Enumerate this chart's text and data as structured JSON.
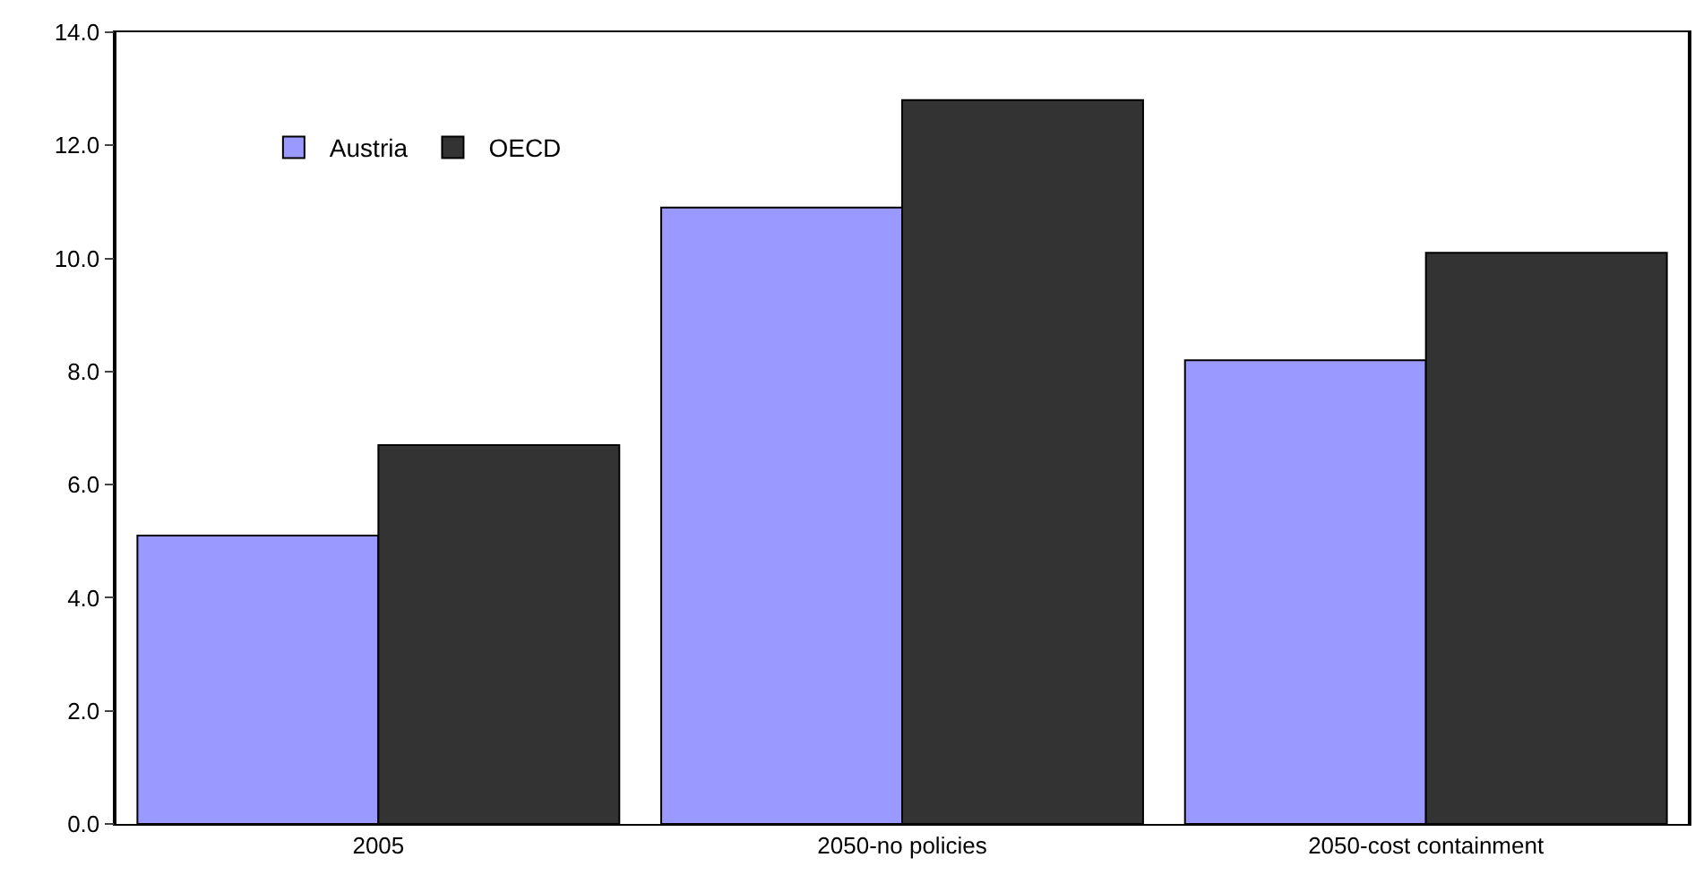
{
  "chart_data": {
    "type": "bar",
    "categories": [
      "2005",
      "2050-no policies",
      "2050-cost containment"
    ],
    "series": [
      {
        "name": "Austria",
        "color": "#9999ff",
        "values": [
          5.1,
          10.9,
          8.2
        ]
      },
      {
        "name": "OECD",
        "color": "#333333",
        "values": [
          6.7,
          12.8,
          10.1
        ]
      }
    ],
    "ylim": [
      0,
      14
    ],
    "yticks": [
      {
        "value": 0,
        "label": "0.0"
      },
      {
        "value": 2,
        "label": "2.0"
      },
      {
        "value": 4,
        "label": "4.0"
      },
      {
        "value": 6,
        "label": "6.0"
      },
      {
        "value": 8,
        "label": "8.0"
      },
      {
        "value": 10,
        "label": "10.0"
      },
      {
        "value": 12,
        "label": "12.0"
      },
      {
        "value": 14,
        "label": "14.0"
      }
    ],
    "legend": "top left"
  }
}
